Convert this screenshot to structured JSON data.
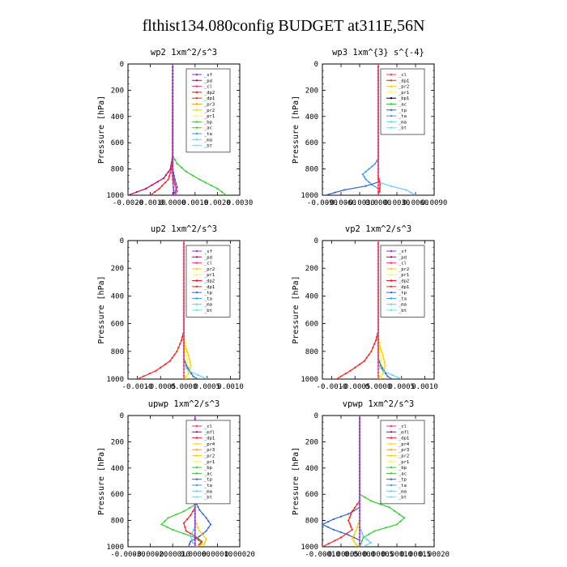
{
  "title": "flthist134.080config  BUDGET at311E,56N",
  "colors": {
    "_sf": "#9933cc",
    "_pd": "#cc0066",
    "_cl": "#ff3366",
    "_dp1": "#ff2222",
    "_dp2": "#ee1111",
    "_pr1": "#ffff33",
    "_pr2": "#ffcc00",
    "_bp": "#33cc33",
    "_ac": "#33cc33",
    "_tp": "#3366cc",
    "_ta": "#3399ff",
    "_ma": "#66ccff",
    "_bt": "#33ffff",
    "_mfl": "#cc0066",
    "_pr3": "#ffa500",
    "_pr4": "#ffd700",
    "_dp4": "#ff0000"
  },
  "chart_data": [
    {
      "type": "line",
      "title": "wp2   1xm^2/s^3",
      "ylabel": "Pressure  [hPa]",
      "ylim": [
        1000,
        0
      ],
      "yticks": [
        0,
        200,
        400,
        600,
        800,
        1000
      ],
      "xlim": [
        -0.002,
        0.003
      ],
      "xticks": [
        -0.002,
        -0.001,
        0.0,
        0.001,
        0.002,
        0.003
      ],
      "xticklabels": [
        "-0.0020",
        "-0.0010",
        "0.0000",
        "0.0010",
        "0.0020",
        "0.0030"
      ],
      "legend": [
        "_sf",
        "_pd",
        "_cl",
        "_dp2",
        "_dp1",
        "_pr3",
        "_pr2",
        "_pr1",
        "_bp",
        "_ac",
        "_ta",
        "_ma",
        "_bt"
      ],
      "legend_position": "upper-right",
      "series": [
        {
          "name": "_pd",
          "x": [
            0,
            0,
            0,
            -5e-05,
            -0.0001,
            -0.0004,
            -0.0012,
            -0.002
          ],
          "y": [
            0,
            600,
            700,
            750,
            800,
            870,
            950,
            1000
          ]
        },
        {
          "name": "_dp1",
          "x": [
            0,
            0,
            -5e-05,
            -0.0001,
            -0.0002,
            -0.0006,
            -0.001
          ],
          "y": [
            0,
            700,
            780,
            830,
            880,
            950,
            1000
          ]
        },
        {
          "name": "_ac",
          "x": [
            0,
            0,
            0.0002,
            0.0006,
            0.0012,
            0.002,
            0.0024
          ],
          "y": [
            0,
            700,
            760,
            820,
            880,
            950,
            1000
          ]
        },
        {
          "name": "_tp",
          "x": [
            0,
            0,
            0.0001,
            0.0002,
            0.0001,
            0.0
          ],
          "y": [
            0,
            800,
            880,
            940,
            980,
            1000
          ]
        },
        {
          "name": "_cl",
          "x": [
            0,
            0,
            0.0001,
            0.0002,
            0.0001
          ],
          "y": [
            0,
            850,
            920,
            970,
            1000
          ]
        },
        {
          "name": "_sf",
          "x": [
            0,
            0,
            3e-05,
            5e-05,
            3e-05
          ],
          "y": [
            0,
            880,
            940,
            980,
            1000
          ]
        }
      ]
    },
    {
      "type": "line",
      "title": "wp3   1xm^{3} s^{-4}",
      "ylabel": "Pressure  [hPa]",
      "ylim": [
        1000,
        0
      ],
      "yticks": [
        0,
        200,
        400,
        600,
        800,
        1000
      ],
      "xlim": [
        -0.009,
        0.009
      ],
      "xticks": [
        -0.009,
        -0.006,
        -0.003,
        0.0,
        0.003,
        0.006,
        0.009
      ],
      "xticklabels": [
        "-0.0090",
        "-0.0060",
        "-0.0030",
        "0.0000",
        "0.0030",
        "0.0060",
        "0.0090"
      ],
      "legend": [
        "_cl",
        "_dp1",
        "_pr2",
        "_pr1",
        "_bp1",
        "_ac",
        "_tp",
        "_ta",
        "_ma",
        "_bt"
      ],
      "legend_position": "upper-right",
      "series": [
        {
          "name": "_ta",
          "x": [
            0,
            0,
            -0.0005,
            -0.0015,
            -0.0025,
            -0.002,
            -0.001,
            0.0
          ],
          "y": [
            0,
            720,
            760,
            800,
            840,
            880,
            920,
            950
          ]
        },
        {
          "name": "_tp",
          "x": [
            0,
            0,
            -0.002,
            -0.0055,
            -0.0085
          ],
          "y": [
            0,
            900,
            930,
            960,
            1000
          ]
        },
        {
          "name": "_ma",
          "x": [
            0,
            0,
            0.002,
            0.0045,
            0.006
          ],
          "y": [
            0,
            900,
            930,
            960,
            1000
          ]
        },
        {
          "name": "_dp1",
          "x": [
            0,
            0,
            0.0003,
            0.0002,
            0.0
          ],
          "y": [
            0,
            850,
            920,
            970,
            1000
          ]
        },
        {
          "name": "_cl",
          "x": [
            0,
            0,
            0.0
          ],
          "y": [
            0,
            500,
            1000
          ]
        }
      ]
    },
    {
      "type": "line",
      "title": "up2   1xm^2/s^3",
      "ylabel": "Pressure  [hPa]",
      "ylim": [
        1000,
        0
      ],
      "yticks": [
        0,
        200,
        400,
        600,
        800,
        1000
      ],
      "xlim": [
        -0.0012,
        0.0012
      ],
      "xticks": [
        -0.001,
        -0.0005,
        0.0,
        0.0005,
        0.001
      ],
      "xticklabels": [
        "-0.0010",
        "-0.0005",
        "0.0000",
        "0.0005",
        "0.0010"
      ],
      "legend": [
        "_sf",
        "_pd",
        "_cl",
        "_pr2",
        "_pr1",
        "_dp2",
        "_dp1",
        "_tp",
        "_ta",
        "_ma",
        "_bt"
      ],
      "legend_position": "upper-right",
      "series": [
        {
          "name": "_dp1",
          "x": [
            0,
            0,
            -5e-05,
            -0.00015,
            -0.0003,
            -0.0006,
            -0.001
          ],
          "y": [
            0,
            650,
            720,
            800,
            870,
            940,
            1000
          ]
        },
        {
          "name": "_pr2",
          "x": [
            0,
            0,
            3e-05,
            0.0001,
            0.00015,
            0.0001,
            0.0
          ],
          "y": [
            0,
            700,
            760,
            830,
            900,
            960,
            1000
          ]
        },
        {
          "name": "_pr1",
          "x": [
            0,
            0,
            2e-05,
            6e-05,
            0.0001,
            5e-05
          ],
          "y": [
            0,
            700,
            780,
            860,
            930,
            1000
          ]
        },
        {
          "name": "_tp",
          "x": [
            0,
            0,
            5e-05,
            0.00012,
            0.0002,
            0.0003
          ],
          "y": [
            0,
            850,
            900,
            940,
            980,
            1000
          ]
        },
        {
          "name": "_ma",
          "x": [
            0,
            0,
            0.0001,
            0.0003,
            0.0005
          ],
          "y": [
            0,
            900,
            940,
            970,
            1000
          ]
        },
        {
          "name": "_cl",
          "x": [
            0,
            0,
            0.0
          ],
          "y": [
            0,
            500,
            1000
          ]
        }
      ]
    },
    {
      "type": "line",
      "title": "vp2   1xm^2/s^3",
      "ylabel": "Pressure  [hPa]",
      "ylim": [
        1000,
        0
      ],
      "yticks": [
        0,
        200,
        400,
        600,
        800,
        1000
      ],
      "xlim": [
        -0.0012,
        0.0012
      ],
      "xticks": [
        -0.001,
        -0.0005,
        0.0,
        0.0005,
        0.001
      ],
      "xticklabels": [
        "-0.0010",
        "-0.0005",
        "0.0000",
        "0.0005",
        "0.0010"
      ],
      "legend": [
        "_sf",
        "_pd",
        "_cl",
        "_pr2",
        "_pr1",
        "_dp2",
        "_dp1",
        "_tp",
        "_ta",
        "_ma",
        "_bt"
      ],
      "legend_position": "upper-right",
      "series": [
        {
          "name": "_dp1",
          "x": [
            0,
            0,
            -5e-05,
            -0.00015,
            -0.0003,
            -0.0006,
            -0.0009
          ],
          "y": [
            0,
            650,
            720,
            800,
            870,
            940,
            1000
          ]
        },
        {
          "name": "_pr2",
          "x": [
            0,
            0,
            3e-05,
            0.0001,
            0.00015,
            0.0001,
            0.0
          ],
          "y": [
            0,
            700,
            760,
            830,
            900,
            960,
            1000
          ]
        },
        {
          "name": "_pr1",
          "x": [
            0,
            0,
            2e-05,
            6e-05,
            0.0001,
            5e-05
          ],
          "y": [
            0,
            700,
            780,
            860,
            930,
            1000
          ]
        },
        {
          "name": "_tp",
          "x": [
            0,
            0,
            5e-05,
            0.00012,
            0.0002,
            0.0003
          ],
          "y": [
            0,
            850,
            900,
            940,
            980,
            1000
          ]
        },
        {
          "name": "_ma",
          "x": [
            0,
            0,
            0.0001,
            0.0003,
            0.0005
          ],
          "y": [
            0,
            900,
            940,
            970,
            1000
          ]
        },
        {
          "name": "_cl",
          "x": [
            0,
            0,
            0.0
          ],
          "y": [
            0,
            500,
            1000
          ]
        }
      ]
    },
    {
      "type": "line",
      "title": "upwp   1xm^2/s^3",
      "ylabel": "Pressure  [hPa]",
      "ylim": [
        1000,
        0
      ],
      "yticks": [
        0,
        200,
        400,
        600,
        800,
        1000
      ],
      "xlim": [
        -0.0003,
        0.0002
      ],
      "xticks": [
        -0.0003,
        -0.0002,
        -0.0001,
        0.0,
        0.0001,
        0.0002
      ],
      "xticklabels": [
        "-0.00030",
        "-0.00020",
        "-0.00010",
        "0.00000",
        "0.00010",
        "0.00020"
      ],
      "legend": [
        "_cl",
        "_mfl",
        "_dp1",
        "_pr4",
        "_pr3",
        "_pr2",
        "_pr1",
        "_bp",
        "_ac",
        "_tp",
        "_ta",
        "_ma",
        "_bt"
      ],
      "legend_position": "upper-right",
      "series": [
        {
          "name": "_ac",
          "x": [
            0,
            0,
            -5e-05,
            -0.00012,
            -0.00015,
            -0.0001,
            -5e-05,
            0,
            3e-05,
            1e-05
          ],
          "y": [
            0,
            680,
            730,
            780,
            830,
            870,
            900,
            930,
            970,
            1000
          ]
        },
        {
          "name": "_tp",
          "x": [
            0,
            0,
            2e-05,
            5e-05,
            7e-05,
            5e-05,
            2e-05,
            -2e-05,
            -3e-05
          ],
          "y": [
            0,
            650,
            720,
            780,
            830,
            880,
            920,
            960,
            1000
          ]
        },
        {
          "name": "_dp1",
          "x": [
            0,
            0,
            -2e-05,
            -5e-05,
            -4e-05,
            0.0,
            3e-05,
            1e-05
          ],
          "y": [
            0,
            700,
            760,
            820,
            880,
            920,
            960,
            1000
          ]
        },
        {
          "name": "_pr2",
          "x": [
            0,
            0,
            2e-05,
            5e-05,
            4e-05,
            0.0
          ],
          "y": [
            0,
            800,
            880,
            940,
            980,
            1000
          ]
        },
        {
          "name": "_ma",
          "x": [
            0,
            0,
            -2e-05,
            -1e-05,
            1e-05
          ],
          "y": [
            0,
            850,
            920,
            970,
            1000
          ]
        },
        {
          "name": "_sf",
          "x": [
            0,
            0,
            0.0
          ],
          "y": [
            0,
            500,
            1000
          ]
        }
      ]
    },
    {
      "type": "line",
      "title": "vpwp   1xm^2/s^3",
      "ylabel": "Pressure  [hPa]",
      "ylim": [
        1000,
        0
      ],
      "yticks": [
        0,
        200,
        400,
        600,
        800,
        1000
      ],
      "xlim": [
        -0.0001,
        0.0002
      ],
      "xticks": [
        -0.0001,
        -5e-05,
        0.0,
        5e-05,
        0.0001,
        0.00015,
        0.0002
      ],
      "xticklabels": [
        "-0.00010",
        "-0.00005",
        "0.00000",
        "0.00005",
        "0.00010",
        "0.00015",
        "0.00020"
      ],
      "legend": [
        "_cl",
        "_mfl",
        "_dp1",
        "_pr4",
        "_pr3",
        "_pr2",
        "_pr1",
        "_bp",
        "_ac",
        "_tp",
        "_ta",
        "_ma",
        "_bt"
      ],
      "legend_position": "upper-right",
      "series": [
        {
          "name": "_ac",
          "x": [
            0,
            0,
            3e-05,
            8e-05,
            0.00012,
            0.0001,
            4e-05,
            1e-05,
            0.0
          ],
          "y": [
            0,
            600,
            650,
            700,
            780,
            830,
            880,
            930,
            1000
          ]
        },
        {
          "name": "_tp",
          "x": [
            0,
            0,
            -3e-05,
            -7e-05,
            -0.0001,
            -7e-05,
            -3e-05,
            0.0
          ],
          "y": [
            0,
            700,
            750,
            790,
            830,
            870,
            910,
            950
          ]
        },
        {
          "name": "_dp1",
          "x": [
            0,
            0,
            -2e-05,
            -3e-05,
            -2e-05,
            -5e-05,
            -0.0001
          ],
          "y": [
            0,
            650,
            730,
            800,
            870,
            930,
            1000
          ]
        },
        {
          "name": "_pr2",
          "x": [
            0,
            0,
            -1e-05,
            -2e-05,
            -1e-05,
            0.0
          ],
          "y": [
            0,
            800,
            880,
            940,
            980,
            1000
          ]
        },
        {
          "name": "_ma",
          "x": [
            0,
            0,
            1e-05,
            3e-05,
            1e-05
          ],
          "y": [
            0,
            850,
            920,
            970,
            1000
          ]
        },
        {
          "name": "_sf",
          "x": [
            0,
            0,
            0.0
          ],
          "y": [
            0,
            500,
            1000
          ]
        }
      ]
    }
  ]
}
